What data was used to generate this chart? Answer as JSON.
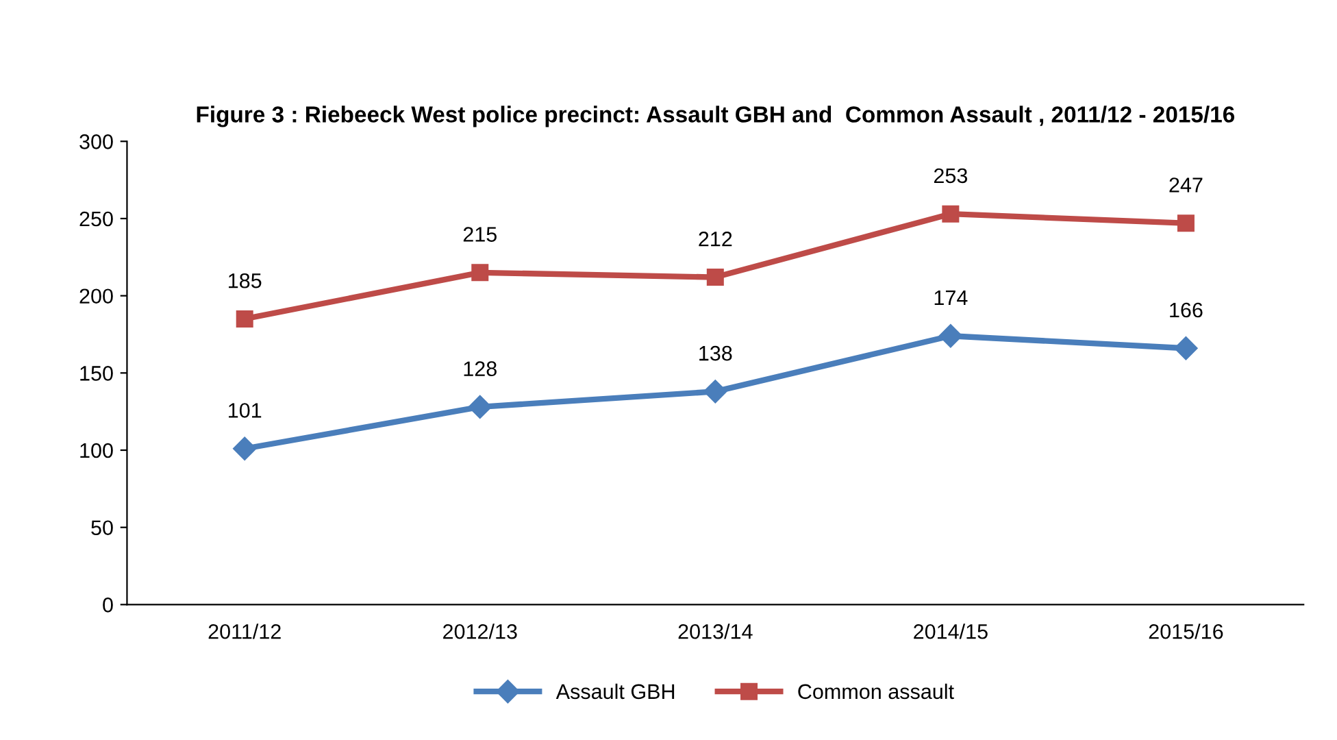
{
  "chart_data": {
    "type": "line",
    "title": "Figure 3 : Riebeeck West police precinct: Assault GBH and  Common Assault , 2011/12 - 2015/16",
    "categories": [
      "2011/12",
      "2012/13",
      "2013/14",
      "2014/15",
      "2015/16"
    ],
    "series": [
      {
        "name": "Assault GBH",
        "color": "#4a7ebb",
        "marker": "diamond",
        "values": [
          101,
          128,
          138,
          174,
          166
        ]
      },
      {
        "name": "Common assault",
        "color": "#be4b48",
        "marker": "square",
        "values": [
          185,
          215,
          212,
          253,
          247
        ]
      }
    ],
    "ylim": [
      0,
      300
    ],
    "yticks": [
      0,
      50,
      100,
      150,
      200,
      250,
      300
    ],
    "grid": false,
    "legend": "bottom",
    "data_labels": true
  }
}
